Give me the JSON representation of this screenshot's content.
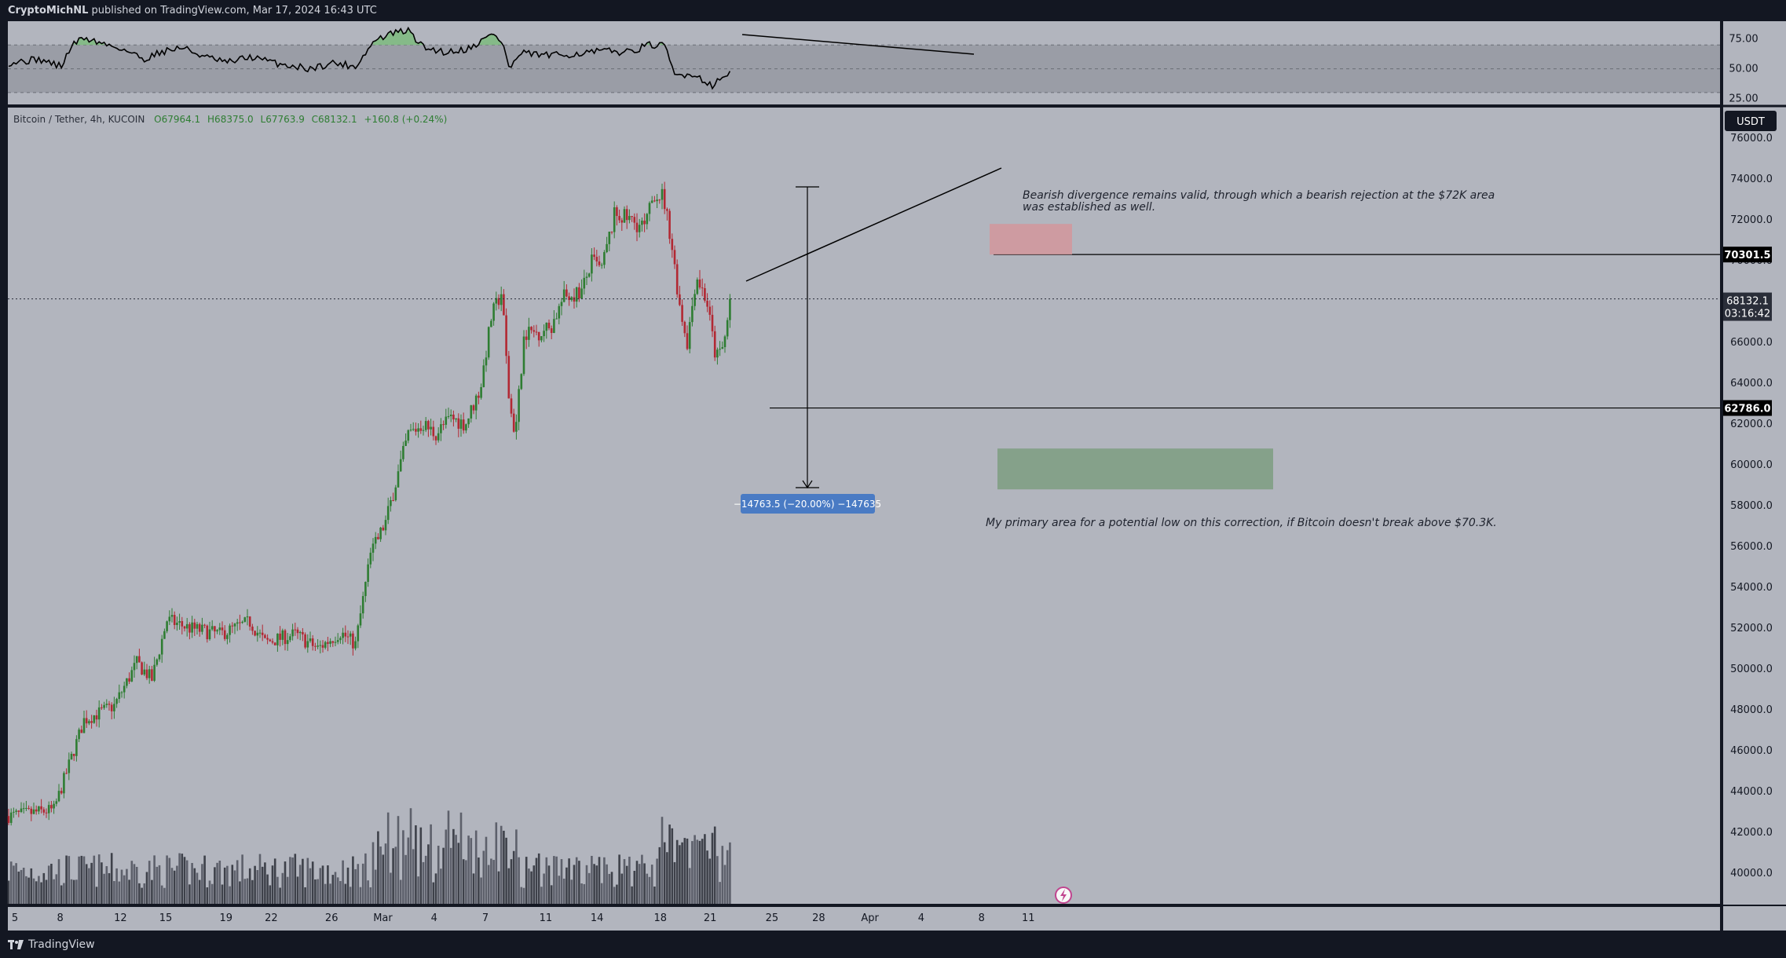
{
  "header": {
    "author": "CryptoMichNL",
    "published_text": "published on TradingView.com, Mar 17, 2024 16:43 UTC"
  },
  "footer": {
    "brand": "TradingView"
  },
  "legend": {
    "symbol": "Bitcoin / Tether, 4h, KUCOIN",
    "open": "O67964.1",
    "high": "H68375.0",
    "low": "L67763.9",
    "close": "C68132.1",
    "change": "+160.8 (+0.24%)"
  },
  "currency_badge": "USDT",
  "price_axis_labels": [
    "76000.0",
    "74000.0",
    "72000.0",
    "70000.0",
    "68000.0",
    "66000.0",
    "64000.0",
    "62000.0",
    "60000.0",
    "58000.0",
    "56000.0",
    "54000.0",
    "52000.0",
    "50000.0",
    "48000.0",
    "46000.0",
    "44000.0",
    "42000.0",
    "40000.0"
  ],
  "rsi_axis_labels": [
    "75.00",
    "50.00",
    "25.00"
  ],
  "price_tags": {
    "resistance": "70301.5",
    "last_price": "68132.1",
    "countdown": "03:16:42",
    "support": "62786.0"
  },
  "annotations": {
    "bearish_note_line1": "Bearish divergence remains valid, through which a bearish rejection at the $72K area",
    "bearish_note_line2": "was established as well.",
    "primary_area_note": "My primary area for a potential low on this correction, if Bitcoin doesn't break above $70.3K.",
    "measure_label": "−14763.5 (−20.00%) −147635"
  },
  "colors": {
    "background": "#131722",
    "pane": "#b2b5be",
    "grid_text": "#2a2e39",
    "up": "#2e7d32",
    "down": "#b22833",
    "resistance_box": "#d2979c",
    "support_box": "#7f9f84",
    "measure_box": "#4a7bc4",
    "rsi_line": "#000000",
    "rsi_fill": "#7cbb7f"
  },
  "chart_data": {
    "type": "candlestick",
    "timeframe": "4h",
    "x_axis_labels": [
      "5",
      "8",
      "12",
      "15",
      "19",
      "22",
      "26",
      "Mar",
      "4",
      "7",
      "11",
      "14",
      "18",
      "21",
      "25",
      "28",
      "Apr",
      "4",
      "8",
      "11"
    ],
    "ylim": [
      38500,
      77500
    ],
    "resistance_level": 70301.5,
    "support_level": 62786.0,
    "last_price": 68132.1,
    "resistance_zone": [
      70300,
      71800
    ],
    "target_zone": [
      58800,
      60800
    ],
    "measure_drop": -14763.5,
    "measure_drop_percent": -20.0,
    "price_anchors": [
      {
        "day": 0,
        "price": 42800
      },
      {
        "day": 3,
        "price": 43100
      },
      {
        "day": 5,
        "price": 47500
      },
      {
        "day": 7,
        "price": 48200
      },
      {
        "day": 8.5,
        "price": 50300
      },
      {
        "day": 9.5,
        "price": 49500
      },
      {
        "day": 10.5,
        "price": 52400
      },
      {
        "day": 12,
        "price": 52000
      },
      {
        "day": 14,
        "price": 51700
      },
      {
        "day": 16,
        "price": 52300
      },
      {
        "day": 17,
        "price": 51300
      },
      {
        "day": 19,
        "price": 51700
      },
      {
        "day": 20.5,
        "price": 51000
      },
      {
        "day": 22,
        "price": 51800
      },
      {
        "day": 23,
        "price": 51200
      },
      {
        "day": 24,
        "price": 55600
      },
      {
        "day": 25,
        "price": 57200
      },
      {
        "day": 26.5,
        "price": 61500
      },
      {
        "day": 27.5,
        "price": 62000
      },
      {
        "day": 28.3,
        "price": 61500
      },
      {
        "day": 29.3,
        "price": 62300
      },
      {
        "day": 30.3,
        "price": 62000
      },
      {
        "day": 31.3,
        "price": 63800
      },
      {
        "day": 32,
        "price": 67200
      },
      {
        "day": 32.7,
        "price": 68500
      },
      {
        "day": 33.2,
        "price": 63000
      },
      {
        "day": 33.6,
        "price": 61500
      },
      {
        "day": 34.2,
        "price": 66500
      },
      {
        "day": 35.2,
        "price": 66500
      },
      {
        "day": 36,
        "price": 66800
      },
      {
        "day": 36.8,
        "price": 68200
      },
      {
        "day": 38,
        "price": 68500
      },
      {
        "day": 38.7,
        "price": 70000
      },
      {
        "day": 39.3,
        "price": 69500
      },
      {
        "day": 40.2,
        "price": 72300
      },
      {
        "day": 41.2,
        "price": 72000
      },
      {
        "day": 42.2,
        "price": 71600
      },
      {
        "day": 42.8,
        "price": 73300
      },
      {
        "day": 43.4,
        "price": 73200
      },
      {
        "day": 43.9,
        "price": 71200
      },
      {
        "day": 44.5,
        "price": 67800
      },
      {
        "day": 45.0,
        "price": 66000
      },
      {
        "day": 45.6,
        "price": 69300
      },
      {
        "day": 46.3,
        "price": 68000
      },
      {
        "day": 46.9,
        "price": 65200
      },
      {
        "day": 47.4,
        "price": 65800
      },
      {
        "day": 47.9,
        "price": 68132
      }
    ],
    "rsi": {
      "ylim": [
        20,
        90
      ],
      "levels": [
        70,
        50,
        30
      ],
      "anchors": [
        {
          "day": 0,
          "value": 55
        },
        {
          "day": 2,
          "value": 58
        },
        {
          "day": 3.5,
          "value": 52
        },
        {
          "day": 4.2,
          "value": 70
        },
        {
          "day": 5,
          "value": 76
        },
        {
          "day": 6,
          "value": 72
        },
        {
          "day": 7.5,
          "value": 67
        },
        {
          "day": 9,
          "value": 58
        },
        {
          "day": 10,
          "value": 64
        },
        {
          "day": 11.5,
          "value": 68
        },
        {
          "day": 13,
          "value": 60
        },
        {
          "day": 14.5,
          "value": 55
        },
        {
          "day": 16,
          "value": 60
        },
        {
          "day": 18,
          "value": 54
        },
        {
          "day": 20,
          "value": 50
        },
        {
          "day": 21.5,
          "value": 55
        },
        {
          "day": 23,
          "value": 52
        },
        {
          "day": 24.3,
          "value": 74
        },
        {
          "day": 25.5,
          "value": 80
        },
        {
          "day": 26.5,
          "value": 82
        },
        {
          "day": 27.5,
          "value": 68
        },
        {
          "day": 29,
          "value": 64
        },
        {
          "day": 30.5,
          "value": 67
        },
        {
          "day": 32.2,
          "value": 80
        },
        {
          "day": 32.8,
          "value": 70
        },
        {
          "day": 33.2,
          "value": 50
        },
        {
          "day": 34,
          "value": 63
        },
        {
          "day": 36,
          "value": 61
        },
        {
          "day": 38,
          "value": 63
        },
        {
          "day": 39.5,
          "value": 65
        },
        {
          "day": 41,
          "value": 64
        },
        {
          "day": 42.5,
          "value": 70
        },
        {
          "day": 43.5,
          "value": 69
        },
        {
          "day": 44.2,
          "value": 44
        },
        {
          "day": 45.3,
          "value": 46
        },
        {
          "day": 46.7,
          "value": 36
        },
        {
          "day": 47.9,
          "value": 48
        }
      ]
    }
  }
}
